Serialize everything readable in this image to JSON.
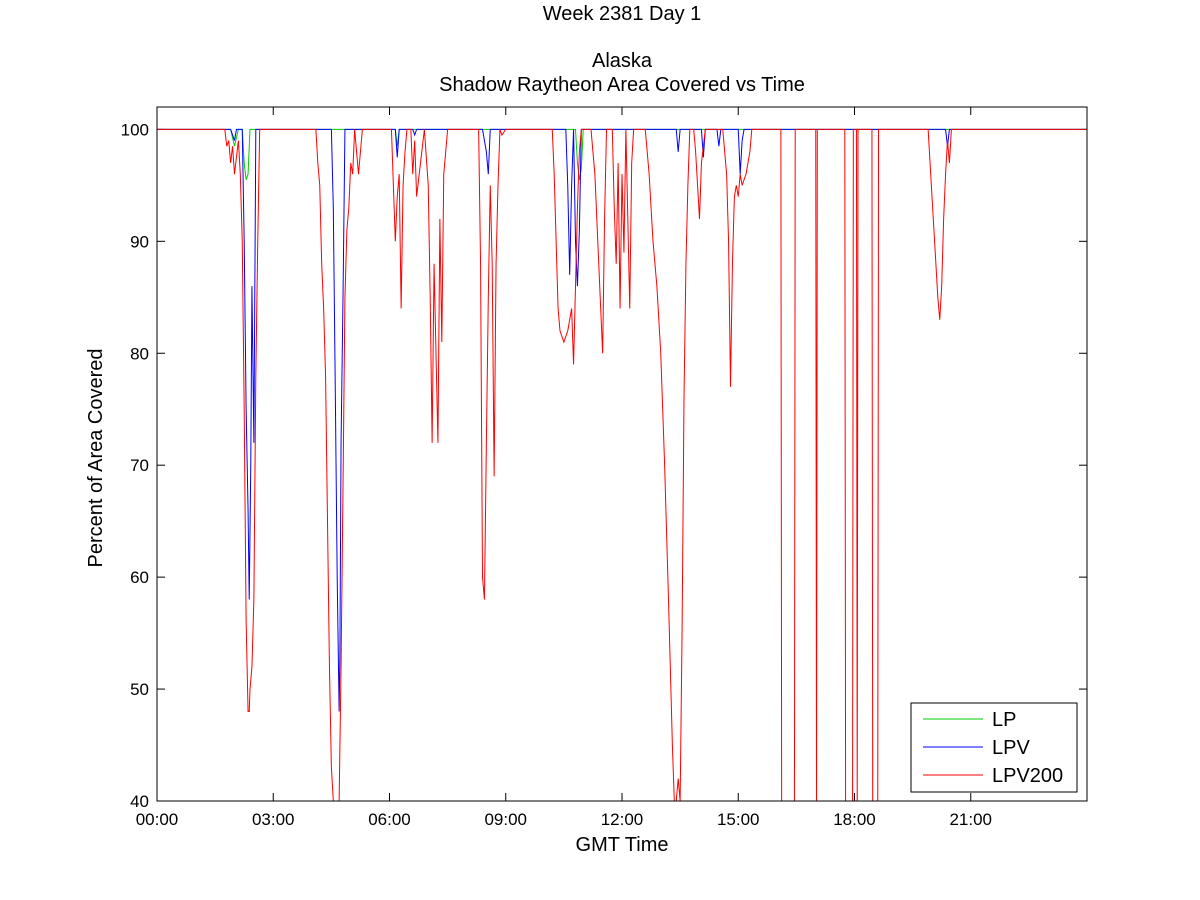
{
  "chart_data": {
    "type": "line",
    "title_lines": [
      "Week 2381 Day 1",
      "",
      "Alaska",
      "Shadow Raytheon Area Covered vs Time"
    ],
    "xlabel": "GMT Time",
    "ylabel": "Percent of Area Covered",
    "xlim": [
      0,
      24
    ],
    "ylim": [
      40,
      102
    ],
    "x_ticks": [
      0,
      3,
      6,
      9,
      12,
      15,
      18,
      21
    ],
    "x_tick_labels": [
      "00:00",
      "03:00",
      "06:00",
      "09:00",
      "12:00",
      "15:00",
      "18:00",
      "21:00"
    ],
    "y_ticks": [
      40,
      50,
      60,
      70,
      80,
      90,
      100
    ],
    "y_tick_labels": [
      "40",
      "50",
      "60",
      "70",
      "80",
      "90",
      "100"
    ],
    "grid": false,
    "legend_position": "bottom-right",
    "series": [
      {
        "name": "LP",
        "color": "#00cc00",
        "points": [
          [
            0,
            100
          ],
          [
            1.9,
            100
          ],
          [
            2.0,
            98.5
          ],
          [
            2.1,
            100
          ],
          [
            2.2,
            100
          ],
          [
            2.25,
            97
          ],
          [
            2.3,
            95.5
          ],
          [
            2.35,
            96
          ],
          [
            2.4,
            100
          ],
          [
            2.5,
            100
          ],
          [
            6.15,
            100
          ],
          [
            6.2,
            98.5
          ],
          [
            6.25,
            100
          ],
          [
            10.8,
            100
          ],
          [
            10.85,
            97
          ],
          [
            10.9,
            95.5
          ],
          [
            10.95,
            96.5
          ],
          [
            11.0,
            100
          ],
          [
            24,
            100
          ]
        ]
      },
      {
        "name": "LPV",
        "color": "#0000ff",
        "points": [
          [
            0,
            100
          ],
          [
            1.9,
            100
          ],
          [
            2.0,
            99
          ],
          [
            2.05,
            100
          ],
          [
            2.2,
            100
          ],
          [
            2.25,
            90
          ],
          [
            2.3,
            75
          ],
          [
            2.35,
            66
          ],
          [
            2.38,
            58
          ],
          [
            2.42,
            70
          ],
          [
            2.45,
            86
          ],
          [
            2.5,
            72
          ],
          [
            2.55,
            100
          ],
          [
            2.6,
            100
          ],
          [
            4.5,
            100
          ],
          [
            4.55,
            93
          ],
          [
            4.6,
            77
          ],
          [
            4.65,
            60
          ],
          [
            4.7,
            48
          ],
          [
            4.72,
            53
          ],
          [
            4.75,
            72
          ],
          [
            4.8,
            85
          ],
          [
            4.85,
            100
          ],
          [
            4.9,
            100
          ],
          [
            6.15,
            100
          ],
          [
            6.2,
            97.5
          ],
          [
            6.25,
            100
          ],
          [
            6.6,
            100
          ],
          [
            6.65,
            99.5
          ],
          [
            6.7,
            100
          ],
          [
            8.4,
            100
          ],
          [
            8.5,
            98
          ],
          [
            8.55,
            96
          ],
          [
            8.6,
            100
          ],
          [
            10.55,
            100
          ],
          [
            10.6,
            95
          ],
          [
            10.65,
            87
          ],
          [
            10.7,
            95
          ],
          [
            10.75,
            100
          ],
          [
            10.8,
            90
          ],
          [
            10.85,
            86
          ],
          [
            10.9,
            91
          ],
          [
            10.95,
            100
          ],
          [
            13.4,
            100
          ],
          [
            13.45,
            98
          ],
          [
            13.5,
            100
          ],
          [
            14.05,
            100
          ],
          [
            14.1,
            97.5
          ],
          [
            14.15,
            100
          ],
          [
            14.45,
            100
          ],
          [
            14.5,
            98.5
          ],
          [
            14.55,
            100
          ],
          [
            15.0,
            100
          ],
          [
            15.05,
            96
          ],
          [
            15.1,
            99
          ],
          [
            15.15,
            100
          ],
          [
            20.35,
            100
          ],
          [
            20.4,
            98.5
          ],
          [
            20.45,
            100
          ],
          [
            24,
            100
          ]
        ]
      },
      {
        "name": "LPV200",
        "color": "#ff0000",
        "points": [
          [
            0,
            100
          ],
          [
            1.75,
            100
          ],
          [
            1.8,
            98.5
          ],
          [
            1.85,
            99
          ],
          [
            1.9,
            97
          ],
          [
            1.95,
            98.5
          ],
          [
            2.0,
            96
          ],
          [
            2.05,
            97.5
          ],
          [
            2.1,
            99
          ],
          [
            2.15,
            96
          ],
          [
            2.2,
            90
          ],
          [
            2.25,
            75
          ],
          [
            2.3,
            56
          ],
          [
            2.35,
            48
          ],
          [
            2.38,
            48
          ],
          [
            2.4,
            50
          ],
          [
            2.45,
            52
          ],
          [
            2.5,
            58
          ],
          [
            2.55,
            78
          ],
          [
            2.6,
            90
          ],
          [
            2.65,
            100
          ],
          [
            2.7,
            100
          ],
          [
            4.1,
            100
          ],
          [
            4.15,
            97
          ],
          [
            4.2,
            95
          ],
          [
            4.25,
            88
          ],
          [
            4.3,
            84
          ],
          [
            4.35,
            78
          ],
          [
            4.4,
            65
          ],
          [
            4.45,
            52
          ],
          [
            4.5,
            43
          ],
          [
            4.55,
            40
          ],
          [
            4.6,
            40
          ],
          [
            4.65,
            40
          ],
          [
            4.7,
            40
          ],
          [
            4.75,
            52
          ],
          [
            4.8,
            68
          ],
          [
            4.85,
            85
          ],
          [
            4.9,
            91
          ],
          [
            4.95,
            93
          ],
          [
            5.0,
            97
          ],
          [
            5.05,
            96
          ],
          [
            5.1,
            100
          ],
          [
            5.2,
            96
          ],
          [
            5.3,
            100
          ],
          [
            6.05,
            100
          ],
          [
            6.1,
            95
          ],
          [
            6.15,
            90
          ],
          [
            6.2,
            94
          ],
          [
            6.25,
            96
          ],
          [
            6.3,
            84
          ],
          [
            6.35,
            95
          ],
          [
            6.4,
            98
          ],
          [
            6.45,
            100
          ],
          [
            6.55,
            100
          ],
          [
            6.6,
            96
          ],
          [
            6.65,
            99
          ],
          [
            6.7,
            94
          ],
          [
            6.8,
            97
          ],
          [
            6.9,
            100
          ],
          [
            7.0,
            95
          ],
          [
            7.05,
            85
          ],
          [
            7.1,
            72
          ],
          [
            7.15,
            88
          ],
          [
            7.2,
            80
          ],
          [
            7.25,
            72
          ],
          [
            7.3,
            92
          ],
          [
            7.35,
            81
          ],
          [
            7.4,
            96
          ],
          [
            7.5,
            100
          ],
          [
            8.3,
            100
          ],
          [
            8.35,
            88
          ],
          [
            8.4,
            60
          ],
          [
            8.45,
            58
          ],
          [
            8.5,
            72
          ],
          [
            8.55,
            85
          ],
          [
            8.6,
            95
          ],
          [
            8.65,
            88
          ],
          [
            8.7,
            69
          ],
          [
            8.75,
            88
          ],
          [
            8.8,
            95
          ],
          [
            8.85,
            100
          ],
          [
            8.9,
            99.5
          ],
          [
            9.0,
            100
          ],
          [
            10.2,
            100
          ],
          [
            10.25,
            96
          ],
          [
            10.3,
            90
          ],
          [
            10.35,
            84
          ],
          [
            10.4,
            82
          ],
          [
            10.5,
            81
          ],
          [
            10.6,
            82
          ],
          [
            10.7,
            84
          ],
          [
            10.75,
            79
          ],
          [
            10.8,
            86
          ],
          [
            10.85,
            93
          ],
          [
            10.9,
            98
          ],
          [
            10.95,
            100
          ],
          [
            11.2,
            100
          ],
          [
            11.3,
            96
          ],
          [
            11.4,
            88
          ],
          [
            11.5,
            80
          ],
          [
            11.55,
            92
          ],
          [
            11.6,
            100
          ],
          [
            11.75,
            100
          ],
          [
            11.8,
            93
          ],
          [
            11.85,
            88
          ],
          [
            11.9,
            97
          ],
          [
            11.95,
            84
          ],
          [
            12.0,
            96
          ],
          [
            12.05,
            89
          ],
          [
            12.1,
            100
          ],
          [
            12.15,
            92
          ],
          [
            12.2,
            84
          ],
          [
            12.25,
            97
          ],
          [
            12.3,
            100
          ],
          [
            12.6,
            100
          ],
          [
            12.7,
            96
          ],
          [
            12.8,
            90
          ],
          [
            12.9,
            86
          ],
          [
            13.0,
            80
          ],
          [
            13.1,
            70
          ],
          [
            13.2,
            58
          ],
          [
            13.3,
            45
          ],
          [
            13.35,
            40
          ],
          [
            13.4,
            40
          ],
          [
            13.45,
            42
          ],
          [
            13.5,
            40
          ],
          [
            13.55,
            55
          ],
          [
            13.6,
            76
          ],
          [
            13.65,
            88
          ],
          [
            13.7,
            95
          ],
          [
            13.75,
            100
          ],
          [
            13.85,
            100
          ],
          [
            13.9,
            98
          ],
          [
            13.95,
            95
          ],
          [
            14.0,
            92
          ],
          [
            14.05,
            97
          ],
          [
            14.15,
            100
          ],
          [
            14.6,
            100
          ],
          [
            14.7,
            96
          ],
          [
            14.75,
            90
          ],
          [
            14.8,
            77
          ],
          [
            14.85,
            88
          ],
          [
            14.9,
            94
          ],
          [
            14.95,
            95
          ],
          [
            15.0,
            94
          ],
          [
            15.05,
            96
          ],
          [
            15.1,
            95
          ],
          [
            15.2,
            96
          ],
          [
            15.3,
            98
          ],
          [
            15.35,
            100
          ],
          [
            16.1,
            100
          ],
          [
            16.12,
            40
          ],
          [
            16.45,
            40
          ],
          [
            16.47,
            100
          ],
          [
            17.0,
            100
          ],
          [
            17.02,
            40
          ],
          [
            17.04,
            100
          ],
          [
            17.75,
            100
          ],
          [
            17.77,
            40
          ],
          [
            17.95,
            40
          ],
          [
            17.97,
            100
          ],
          [
            18.05,
            100
          ],
          [
            18.07,
            40
          ],
          [
            18.09,
            100
          ],
          [
            18.45,
            100
          ],
          [
            18.47,
            40
          ],
          [
            18.6,
            40
          ],
          [
            18.62,
            100
          ],
          [
            19.9,
            100
          ],
          [
            19.95,
            97
          ],
          [
            20.0,
            94
          ],
          [
            20.05,
            91
          ],
          [
            20.1,
            88
          ],
          [
            20.15,
            85
          ],
          [
            20.2,
            83
          ],
          [
            20.25,
            86
          ],
          [
            20.3,
            92
          ],
          [
            20.35,
            96
          ],
          [
            20.4,
            99
          ],
          [
            20.45,
            97
          ],
          [
            20.5,
            100
          ],
          [
            24,
            100
          ]
        ]
      }
    ]
  }
}
